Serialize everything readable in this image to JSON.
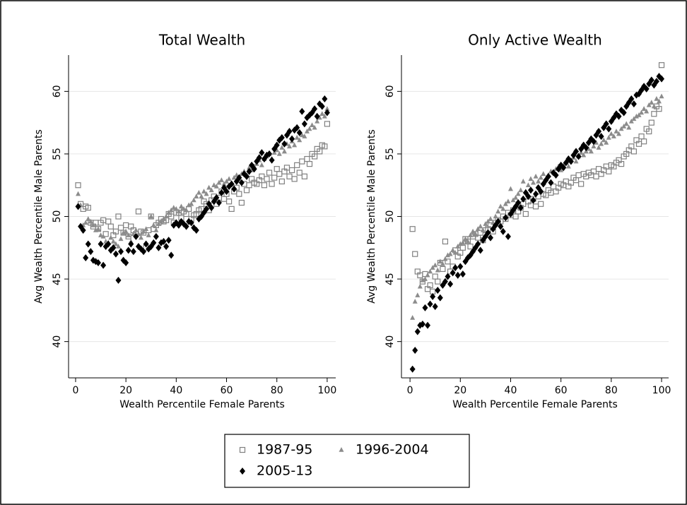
{
  "chart_data": [
    {
      "type": "scatter",
      "title": "Total Wealth",
      "x_label": "Wealth Percentile Female Parents",
      "y_label": "Avg Wealth Percentile Male Parents",
      "x": [
        1,
        2,
        3,
        4,
        5,
        6,
        7,
        8,
        9,
        10,
        11,
        12,
        13,
        14,
        15,
        16,
        17,
        18,
        19,
        20,
        21,
        22,
        23,
        24,
        25,
        26,
        27,
        28,
        29,
        30,
        31,
        32,
        33,
        34,
        35,
        36,
        37,
        38,
        39,
        40,
        41,
        42,
        43,
        44,
        45,
        46,
        47,
        48,
        49,
        50,
        51,
        52,
        53,
        54,
        55,
        56,
        57,
        58,
        59,
        60,
        61,
        62,
        63,
        64,
        65,
        66,
        67,
        68,
        69,
        70,
        71,
        72,
        73,
        74,
        75,
        76,
        77,
        78,
        79,
        80,
        81,
        82,
        83,
        84,
        85,
        86,
        87,
        88,
        89,
        90,
        91,
        92,
        93,
        94,
        95,
        96,
        97,
        98,
        99,
        100
      ],
      "xlim": [
        -2.8,
        103.4
      ],
      "ylim": [
        37.1,
        62.9
      ],
      "xticks": [
        0,
        20,
        40,
        60,
        80,
        100
      ],
      "yticks": [
        40,
        45,
        50,
        55,
        60
      ],
      "grid": true,
      "legend": "bottom",
      "series": [
        {
          "name": "1987-95",
          "color": "#808080",
          "marker": "square",
          "values": [
            52.5,
            51.0,
            50.6,
            50.8,
            50.7,
            49.5,
            49.2,
            49.5,
            49.0,
            49.5,
            49.7,
            48.6,
            49.6,
            49.2,
            48.5,
            48.8,
            50.0,
            49.1,
            48.7,
            49.3,
            48.4,
            49.2,
            48.9,
            48.6,
            50.4,
            48.8,
            48.7,
            47.5,
            48.9,
            50.0,
            49.0,
            49.3,
            49.5,
            49.8,
            49.6,
            49.7,
            50.2,
            50.0,
            49.5,
            50.3,
            50.3,
            49.9,
            50.4,
            50.2,
            50.6,
            49.8,
            50.1,
            50.2,
            50.5,
            50.6,
            51.2,
            51.0,
            50.5,
            51.3,
            51.6,
            51.0,
            51.5,
            52.0,
            51.4,
            51.8,
            51.2,
            50.6,
            52.0,
            52.3,
            51.8,
            51.1,
            52.6,
            52.1,
            52.5,
            53.0,
            52.7,
            52.6,
            52.9,
            53.2,
            52.5,
            53.0,
            53.5,
            52.6,
            53.1,
            53.8,
            53.4,
            52.8,
            53.6,
            53.9,
            53.2,
            53.7,
            53.0,
            54.1,
            53.5,
            54.4,
            53.2,
            54.6,
            54.2,
            55.0,
            54.8,
            55.4,
            55.2,
            55.7,
            55.6,
            57.4
          ]
        },
        {
          "name": "1996-2004",
          "color": "#8c8c8c",
          "marker": "triangle",
          "values": [
            51.8,
            50.9,
            49.3,
            49.5,
            49.8,
            49.6,
            49.3,
            48.9,
            49.0,
            48.5,
            48.4,
            48.0,
            47.9,
            48.3,
            48.0,
            47.8,
            47.6,
            48.2,
            48.7,
            48.8,
            48.5,
            48.0,
            48.6,
            48.9,
            48.6,
            48.3,
            48.8,
            49.0,
            48.5,
            50.0,
            49.3,
            48.9,
            49.4,
            49.6,
            49.8,
            50.0,
            50.3,
            50.5,
            50.7,
            50.6,
            50.4,
            50.8,
            50.6,
            50.5,
            50.9,
            51.0,
            51.3,
            51.6,
            51.9,
            51.6,
            52.0,
            51.8,
            52.3,
            52.1,
            52.5,
            52.4,
            52.7,
            52.9,
            52.6,
            52.8,
            53.0,
            52.6,
            53.1,
            53.3,
            53.0,
            53.4,
            53.6,
            53.3,
            53.9,
            53.7,
            54.0,
            54.2,
            54.5,
            54.1,
            54.6,
            54.8,
            55.0,
            54.6,
            55.1,
            55.3,
            55.0,
            55.5,
            55.2,
            55.8,
            55.6,
            56.0,
            55.7,
            56.3,
            56.1,
            56.5,
            56.4,
            56.8,
            57.0,
            57.3,
            57.1,
            57.6,
            57.9,
            58.2,
            58.0,
            58.6
          ]
        },
        {
          "name": "2005-13",
          "color": "#000000",
          "marker": "diamond",
          "values": [
            50.8,
            49.2,
            48.9,
            46.7,
            47.8,
            47.2,
            46.5,
            46.4,
            46.3,
            47.8,
            46.1,
            47.6,
            47.8,
            47.3,
            47.5,
            47.0,
            44.9,
            47.2,
            46.5,
            46.3,
            47.3,
            47.8,
            47.2,
            48.4,
            47.6,
            47.4,
            47.2,
            47.8,
            47.4,
            47.6,
            47.9,
            48.4,
            47.5,
            47.9,
            48.0,
            47.6,
            48.1,
            46.9,
            49.3,
            49.5,
            49.3,
            49.6,
            49.4,
            49.2,
            49.6,
            49.5,
            49.1,
            48.9,
            49.8,
            50.0,
            50.3,
            50.6,
            51.0,
            50.7,
            51.2,
            51.5,
            51.1,
            51.9,
            52.3,
            52.0,
            52.4,
            52.6,
            52.2,
            52.8,
            53.1,
            52.7,
            53.4,
            53.2,
            53.6,
            54.1,
            53.8,
            54.4,
            54.7,
            55.1,
            54.6,
            54.9,
            55.0,
            54.5,
            55.4,
            55.7,
            56.1,
            56.3,
            55.8,
            56.5,
            56.8,
            56.2,
            56.9,
            57.1,
            56.7,
            58.4,
            57.4,
            57.9,
            58.1,
            58.3,
            58.6,
            58.0,
            59.0,
            58.8,
            59.4,
            58.3
          ]
        }
      ]
    },
    {
      "type": "scatter",
      "title": "Only Active Wealth",
      "x_label": "Wealth Percentile Female Parents",
      "y_label": "Avg Wealth Percentile Male Parents",
      "x": [
        1,
        2,
        3,
        4,
        5,
        6,
        7,
        8,
        9,
        10,
        11,
        12,
        13,
        14,
        15,
        16,
        17,
        18,
        19,
        20,
        21,
        22,
        23,
        24,
        25,
        26,
        27,
        28,
        29,
        30,
        31,
        32,
        33,
        34,
        35,
        36,
        37,
        38,
        39,
        40,
        41,
        42,
        43,
        44,
        45,
        46,
        47,
        48,
        49,
        50,
        51,
        52,
        53,
        54,
        55,
        56,
        57,
        58,
        59,
        60,
        61,
        62,
        63,
        64,
        65,
        66,
        67,
        68,
        69,
        70,
        71,
        72,
        73,
        74,
        75,
        76,
        77,
        78,
        79,
        80,
        81,
        82,
        83,
        84,
        85,
        86,
        87,
        88,
        89,
        90,
        91,
        92,
        93,
        94,
        95,
        96,
        97,
        98,
        99,
        100
      ],
      "xlim": [
        -3.4,
        102.8
      ],
      "ylim": [
        37.1,
        62.9
      ],
      "xticks": [
        0,
        20,
        40,
        60,
        80,
        100
      ],
      "yticks": [
        40,
        45,
        50,
        55,
        60
      ],
      "grid": true,
      "series": [
        {
          "name": "1987-95",
          "color": "#808080",
          "marker": "square",
          "values": [
            49.0,
            47.0,
            45.6,
            45.3,
            44.8,
            45.4,
            44.2,
            44.5,
            44.0,
            45.2,
            44.8,
            46.3,
            45.8,
            48.0,
            46.4,
            45.6,
            46.0,
            47.3,
            46.8,
            47.1,
            47.5,
            48.2,
            48.0,
            47.6,
            48.4,
            48.6,
            48.3,
            48.7,
            48.1,
            48.9,
            49.0,
            49.3,
            48.8,
            49.5,
            49.7,
            49.6,
            50.0,
            49.8,
            50.3,
            50.1,
            50.5,
            50.0,
            50.4,
            50.7,
            51.0,
            50.2,
            51.2,
            50.9,
            51.4,
            50.8,
            51.6,
            51.0,
            51.8,
            51.7,
            52.1,
            51.9,
            52.4,
            52.0,
            52.3,
            52.6,
            52.5,
            52.8,
            52.4,
            52.7,
            53.1,
            52.9,
            53.3,
            52.6,
            53.4,
            53.2,
            53.5,
            53.3,
            53.6,
            53.2,
            53.8,
            53.4,
            53.7,
            54.0,
            53.6,
            54.1,
            54.0,
            54.3,
            54.5,
            54.2,
            54.8,
            55.0,
            55.3,
            55.6,
            55.2,
            56.1,
            55.8,
            56.4,
            56.0,
            57.0,
            56.8,
            57.5,
            58.2,
            58.8,
            58.6,
            62.1
          ]
        },
        {
          "name": "1996-2004",
          "color": "#8c8c8c",
          "marker": "triangle",
          "values": [
            41.9,
            43.2,
            43.7,
            44.4,
            44.9,
            45.0,
            45.3,
            45.6,
            45.9,
            46.1,
            45.7,
            46.4,
            46.2,
            46.6,
            46.9,
            47.0,
            47.3,
            47.1,
            47.6,
            47.8,
            47.9,
            48.2,
            48.0,
            48.5,
            48.8,
            48.6,
            49.0,
            49.2,
            48.9,
            49.4,
            49.6,
            49.8,
            49.5,
            50.0,
            50.4,
            50.8,
            50.6,
            51.0,
            51.2,
            52.2,
            51.3,
            51.5,
            51.8,
            52.1,
            52.8,
            52.0,
            52.5,
            53.0,
            52.7,
            53.2,
            52.8,
            53.1,
            53.4,
            53.0,
            53.3,
            53.6,
            53.5,
            53.8,
            54.0,
            53.7,
            54.1,
            54.3,
            54.0,
            54.5,
            54.7,
            54.4,
            54.8,
            55.1,
            54.9,
            55.2,
            55.4,
            55.2,
            55.6,
            55.9,
            55.5,
            55.8,
            56.1,
            55.9,
            56.3,
            56.6,
            56.4,
            56.8,
            56.6,
            57.0,
            57.2,
            57.4,
            57.1,
            57.6,
            57.8,
            58.0,
            58.1,
            58.3,
            58.6,
            58.4,
            58.9,
            59.1,
            58.8,
            59.4,
            59.2,
            59.6
          ]
        },
        {
          "name": "2005-13",
          "color": "#000000",
          "marker": "diamond",
          "values": [
            37.8,
            39.3,
            40.8,
            41.3,
            41.4,
            42.7,
            41.3,
            43.0,
            43.6,
            42.8,
            44.1,
            43.5,
            44.5,
            44.8,
            45.2,
            44.6,
            45.5,
            45.9,
            45.3,
            46.0,
            45.4,
            46.4,
            46.7,
            46.9,
            47.2,
            47.5,
            47.8,
            47.3,
            48.1,
            48.4,
            48.7,
            48.3,
            49.0,
            49.3,
            49.6,
            49.2,
            48.8,
            49.9,
            48.4,
            50.2,
            50.5,
            50.8,
            51.1,
            50.7,
            51.4,
            51.9,
            51.6,
            52.1,
            51.3,
            51.8,
            52.3,
            52.0,
            52.6,
            52.9,
            53.2,
            52.7,
            53.5,
            53.3,
            53.8,
            54.1,
            53.9,
            54.3,
            54.6,
            54.4,
            54.9,
            55.2,
            54.8,
            55.4,
            55.7,
            55.5,
            55.9,
            56.2,
            56.0,
            56.5,
            56.8,
            56.4,
            57.1,
            57.4,
            57.0,
            57.6,
            57.9,
            58.2,
            58.0,
            58.5,
            58.3,
            58.8,
            59.1,
            59.4,
            59.0,
            59.7,
            59.8,
            60.1,
            60.4,
            60.2,
            60.6,
            60.9,
            60.5,
            60.8,
            61.2,
            61.0
          ]
        }
      ]
    }
  ]
}
